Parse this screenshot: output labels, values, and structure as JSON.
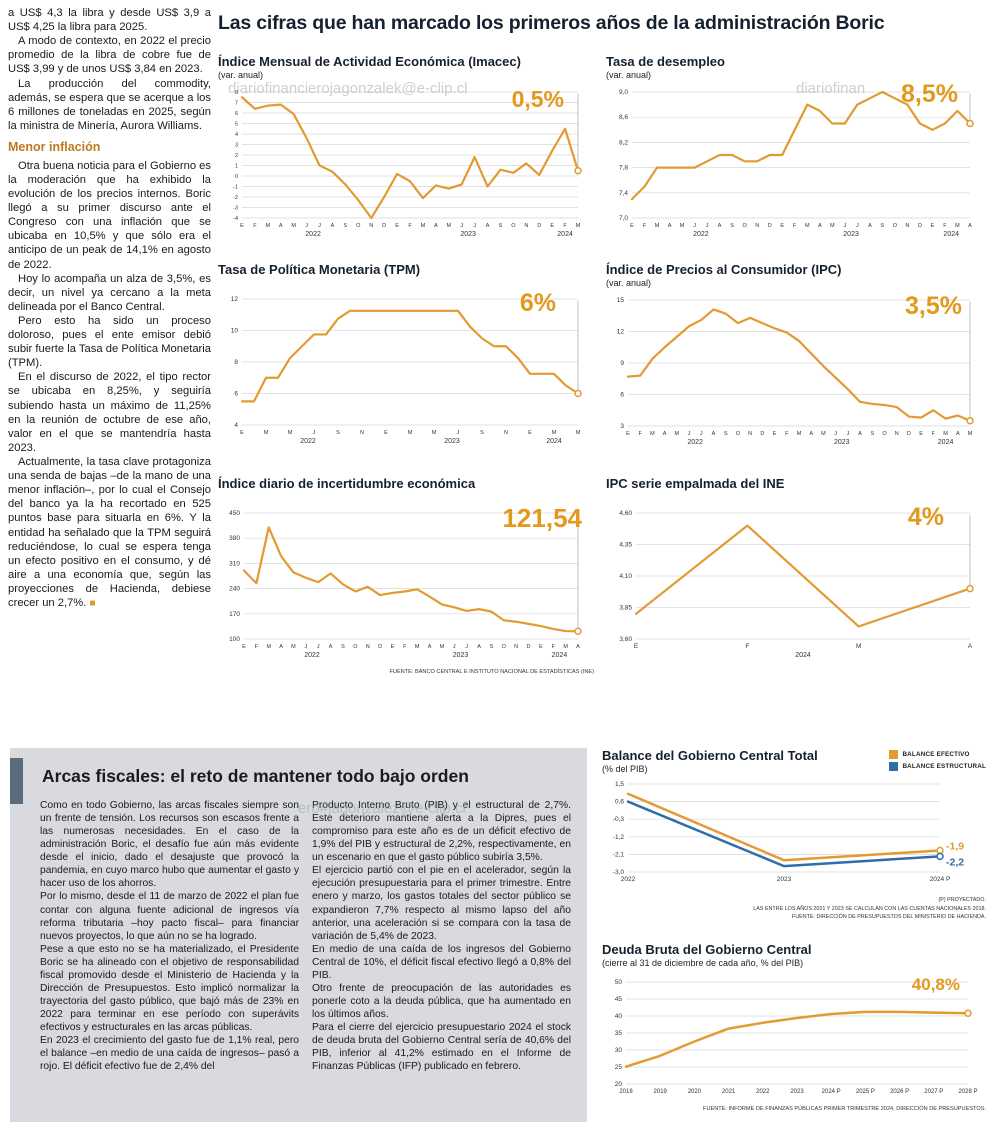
{
  "page": {
    "main_title": "Las cifras que han marcado los primeros años de la administración Boric"
  },
  "watermarks": [
    "diariofinancierojagonzalek@e-clip.cl",
    "diariofinan",
    "ero#jagonzalez@e-clip.cl"
  ],
  "left_article": {
    "intro": [
      "a US$ 4,3 la libra y desde US$ 3,9 a US$ 4,25 la libra para 2025.",
      "A modo de contexto, en 2022 el precio promedio de la libra de cobre fue de US$ 3,99 y de unos US$ 3,84 en 2023.",
      "La producción del commodity, además, se espera que se acerque a los 6 millones de toneladas en 2025, según la ministra de Minería, Aurora Williams."
    ],
    "heading": "Menor inflación",
    "body": [
      "Otra buena noticia para el Gobierno es la moderación que ha exhibido la evolución de los precios internos. Boric llegó a su primer discurso ante el Congreso con una inflación que se ubicaba en 10,5% y que sólo era el anticipo de un peak de 14,1% en agosto de 2022.",
      "Hoy lo acompaña un alza de 3,5%, es decir, un nivel ya cercano a la meta delineada por el Banco Central.",
      "Pero esto ha sido un proceso doloroso, pues el ente emisor debió subir fuerte la Tasa de Política Monetaria (TPM).",
      "En el discurso de 2022, el tipo rector se ubicaba en 8,25%, y seguiría subiendo hasta un máximo de 11,25% en la reunión de octubre de ese año, valor en el que se mantendría hasta 2023.",
      "Actualmente, la tasa clave protagoniza una senda de bajas –de la mano de una menor inflación–, por lo cual el Consejo del banco ya la ha recortado en 525 puntos base para situarla en 6%. Y la entidad ha señalado que la TPM seguirá reduciéndose, lo cual se espera tenga un efecto positivo en el consumo, y dé aire a una economía que, según las proyecciones de Hacienda, debiese crecer un 2,7%."
    ],
    "end_mark": "■"
  },
  "arcas": {
    "title": "Arcas fiscales: el reto de mantener todo bajo orden",
    "col1": [
      "Como en todo Gobierno, las arcas fiscales siempre son un frente de tensión. Los recursos son escasos frente a las numerosas necesidades. En el caso de la administración Boric, el desafío fue aún más evidente desde el inicio, dado el desajuste que provocó la pandemia, en cuyo marco hubo que aumentar el gasto y hacer uso de los ahorros.",
      "Por lo mismo, desde el 11 de marzo de 2022 el plan fue contar con alguna fuente adicional de ingresos vía reforma tributaria –hoy pacto fiscal– para financiar nuevos proyectos, lo que aún no se ha logrado.",
      "Pese a que esto no se ha materializado, el Presidente Boric se ha alineado con el objetivo de responsabilidad fiscal promovido desde el Ministerio de Hacienda y la Dirección de Presupuestos. Esto implicó normalizar la trayectoria del gasto público, que bajó más de 23% en 2022 para terminar en ese período con superávits efectivos y estructurales en las arcas públicas.",
      "En 2023 el crecimiento del gasto fue de 1,1% real, pero el balance –en medio de una caída de ingresos– pasó a rojo. El déficit efectivo fue de 2,4% del"
    ],
    "col2": [
      "Producto Interno Bruto (PIB) y el estructural de 2,7%. Este deterioro mantiene alerta a la Dipres, pues el compromiso para este año es de un déficit efectivo de 1,9% del PIB y estructural de 2,2%, respectivamente, en un escenario en que el gasto público subiría 3,5%.",
      "El ejercicio partió con el pie en el acelerador, según la ejecución presupuestaria para el primer trimestre. Entre enero y marzo, los gastos totales del sector público se expandieron 7,7% respecto al mismo lapso del año anterior, una aceleración si se compara con la tasa de variación de 5,4% de 2023.",
      "En medio de una caída de los ingresos del Gobierno Central de 10%, el déficit fiscal efectivo llegó a 0,8% del PIB.",
      "Otro frente de preocupación de las autoridades es ponerle coto a la deuda pública, que ha aumentado en los últimos años.",
      "Para el cierre del ejercicio presupuestario 2024 el stock de deuda bruta del Gobierno Central sería de 40,6% del PIB, inferior al 41,2% estimado en el Informe de Finanzas Públicas (IFP) publicado en febrero."
    ]
  },
  "chart_data": [
    {
      "id": "imacec",
      "type": "line",
      "title": "Índice Mensual de Actividad Económica (Imacec)",
      "subtitle": "(var. anual)",
      "highlight": "0,5%",
      "ylim": [
        -4,
        8
      ],
      "yfs": 5.5,
      "ml": 24,
      "yticks": [
        8,
        7,
        6,
        5,
        4,
        3,
        2,
        1,
        0,
        -1,
        -2,
        -3,
        -4
      ],
      "categories": [
        "E",
        "F",
        "M",
        "A",
        "M",
        "J",
        "J",
        "A",
        "S",
        "O",
        "N",
        "D",
        "E",
        "F",
        "M",
        "A",
        "M",
        "J",
        "J",
        "A",
        "S",
        "O",
        "N",
        "D",
        "E",
        "F",
        "M"
      ],
      "year_spans": [
        {
          "label": "2022",
          "from": 0,
          "to": 11
        },
        {
          "label": "2023",
          "from": 12,
          "to": 23
        },
        {
          "label": "2024",
          "from": 24,
          "to": 26
        }
      ],
      "pointer": true,
      "series": [
        {
          "name": "Imacec",
          "color": "#E39A33",
          "end_dot": true,
          "values": [
            7.5,
            6.4,
            6.7,
            6.8,
            5.9,
            3.6,
            1.0,
            0.4,
            -0.8,
            -2.3,
            -4.0,
            -2.0,
            0.2,
            -0.5,
            -2.1,
            -0.9,
            -1.2,
            -0.8,
            1.8,
            -1.0,
            0.6,
            0.3,
            1.2,
            0.1,
            2.4,
            4.5,
            0.5
          ]
        }
      ]
    },
    {
      "id": "desempleo",
      "type": "line",
      "title": "Tasa de desempleo",
      "subtitle": "(var. anual)",
      "highlight": "8,5%",
      "ylim": [
        7.0,
        9.0
      ],
      "ml": 26,
      "yticks": [
        9.0,
        8.6,
        8.2,
        7.8,
        7.4,
        7.0
      ],
      "ytick_labels": [
        "9,0",
        "8,6",
        "8,2",
        "7,8",
        "7,4",
        "7,0"
      ],
      "categories": [
        "E",
        "F",
        "M",
        "A",
        "M",
        "J",
        "J",
        "A",
        "S",
        "O",
        "N",
        "D",
        "E",
        "F",
        "M",
        "A",
        "M",
        "J",
        "J",
        "A",
        "S",
        "O",
        "N",
        "D",
        "E",
        "F",
        "M",
        "A"
      ],
      "year_spans": [
        {
          "label": "2022",
          "from": 0,
          "to": 11
        },
        {
          "label": "2023",
          "from": 12,
          "to": 23
        },
        {
          "label": "2024",
          "from": 24,
          "to": 27
        }
      ],
      "pointer": true,
      "series": [
        {
          "name": "Desempleo",
          "color": "#E39A33",
          "end_dot": true,
          "values": [
            7.3,
            7.5,
            7.8,
            7.8,
            7.8,
            7.8,
            7.9,
            8.0,
            8.0,
            7.9,
            7.9,
            8.0,
            8.0,
            8.4,
            8.8,
            8.7,
            8.5,
            8.5,
            8.8,
            8.9,
            9.0,
            8.9,
            8.8,
            8.5,
            8.4,
            8.5,
            8.7,
            8.5
          ]
        }
      ]
    },
    {
      "id": "tpm",
      "type": "line",
      "title": "Tasa de Política Monetaria (TPM)",
      "highlight": "6%",
      "ylim": [
        4,
        12
      ],
      "ml": 24,
      "xtick_every": 2,
      "yticks": [
        12,
        10,
        8,
        6,
        4
      ],
      "categories": [
        "E",
        "F",
        "M",
        "A",
        "M",
        "J",
        "J",
        "A",
        "S",
        "O",
        "N",
        "D",
        "E",
        "F",
        "M",
        "A",
        "M",
        "J",
        "J",
        "A",
        "S",
        "O",
        "N",
        "D",
        "E",
        "F",
        "M",
        "A",
        "M"
      ],
      "year_spans": [
        {
          "label": "2022",
          "from": 0,
          "to": 11
        },
        {
          "label": "2023",
          "from": 12,
          "to": 23
        },
        {
          "label": "2024",
          "from": 24,
          "to": 28
        }
      ],
      "pointer": true,
      "series": [
        {
          "name": "TPM",
          "color": "#E39A33",
          "end_dot": true,
          "values": [
            5.5,
            5.5,
            7.0,
            7.0,
            8.25,
            9.0,
            9.75,
            9.75,
            10.75,
            11.25,
            11.25,
            11.25,
            11.25,
            11.25,
            11.25,
            11.25,
            11.25,
            11.25,
            11.25,
            10.25,
            9.5,
            9.0,
            9.0,
            8.25,
            7.25,
            7.25,
            7.25,
            6.5,
            6.0
          ]
        }
      ]
    },
    {
      "id": "ipc",
      "type": "line",
      "title": "Índice de Precios al Consumidor (IPC)",
      "subtitle": "(var. anual)",
      "highlight": "3,5%",
      "ylim": [
        3,
        15
      ],
      "ml": 22,
      "yticks": [
        15,
        12,
        9,
        6,
        3
      ],
      "categories": [
        "E",
        "F",
        "M",
        "A",
        "M",
        "J",
        "J",
        "A",
        "S",
        "O",
        "N",
        "D",
        "E",
        "F",
        "M",
        "A",
        "M",
        "J",
        "J",
        "A",
        "S",
        "O",
        "N",
        "D",
        "E",
        "F",
        "M",
        "A",
        "M"
      ],
      "year_spans": [
        {
          "label": "2022",
          "from": 0,
          "to": 11
        },
        {
          "label": "2023",
          "from": 12,
          "to": 23
        },
        {
          "label": "2024",
          "from": 24,
          "to": 28
        }
      ],
      "pointer": true,
      "series": [
        {
          "name": "IPC",
          "color": "#E39A33",
          "end_dot": true,
          "values": [
            7.7,
            7.8,
            9.4,
            10.5,
            11.5,
            12.5,
            13.1,
            14.1,
            13.7,
            12.8,
            13.3,
            12.8,
            12.3,
            11.9,
            11.1,
            9.9,
            8.7,
            7.6,
            6.5,
            5.3,
            5.1,
            5.0,
            4.8,
            3.9,
            3.8,
            4.5,
            3.7,
            4.0,
            3.5
          ]
        }
      ]
    },
    {
      "id": "incertidumbre",
      "type": "line",
      "title": "Índice diario de incertidumbre económica",
      "highlight": "121,54",
      "source": "FUENTE: BANCO CENTRAL E INSTITUTO NACIONAL DE ESTADÍSTICAS (INE)",
      "ylim": [
        100,
        450
      ],
      "ml": 26,
      "yticks": [
        450,
        380,
        310,
        240,
        170,
        100
      ],
      "categories": [
        "E",
        "F",
        "M",
        "A",
        "M",
        "J",
        "J",
        "A",
        "S",
        "O",
        "N",
        "D",
        "E",
        "F",
        "M",
        "A",
        "M",
        "J",
        "J",
        "A",
        "S",
        "O",
        "N",
        "D",
        "E",
        "F",
        "M",
        "A"
      ],
      "year_spans": [
        {
          "label": "2022",
          "from": 0,
          "to": 11
        },
        {
          "label": "2023",
          "from": 12,
          "to": 23
        },
        {
          "label": "2024",
          "from": 24,
          "to": 27
        }
      ],
      "pointer": true,
      "series": [
        {
          "name": "Incertidumbre",
          "color": "#E39A33",
          "end_dot": true,
          "values": [
            290,
            255,
            410,
            330,
            285,
            270,
            258,
            282,
            252,
            232,
            245,
            222,
            228,
            232,
            238,
            218,
            196,
            188,
            178,
            183,
            176,
            152,
            148,
            142,
            136,
            128,
            122,
            121.54
          ]
        }
      ]
    },
    {
      "id": "ipc_empalmada",
      "type": "line",
      "title": "IPC serie empalmada del INE",
      "highlight": "4%",
      "ylim": [
        3.6,
        4.6
      ],
      "ml": 30,
      "xfs": 6.5,
      "yticks": [
        4.6,
        4.35,
        4.1,
        3.85,
        3.6
      ],
      "ytick_labels": [
        "4,60",
        "4,35",
        "4,10",
        "3,85",
        "3,60"
      ],
      "categories": [
        "E",
        "F",
        "M",
        "A"
      ],
      "year_spans": [
        {
          "label": "2024",
          "from": 0,
          "to": 3
        }
      ],
      "pointer": true,
      "series": [
        {
          "name": "IPC empalmada",
          "color": "#E39A33",
          "end_dot": true,
          "values": [
            3.8,
            4.5,
            3.7,
            4.0
          ]
        }
      ]
    },
    {
      "id": "balance",
      "type": "line",
      "title": "Balance del Gobierno Central Total",
      "subtitle": "(% del PIB)",
      "legend": [
        {
          "label": "BALANCE EFECTIVO",
          "color": "#E39A33"
        },
        {
          "label": "BALANCE ESTRUCTURAL",
          "color": "#2E6DA8"
        }
      ],
      "ylim": [
        -3.0,
        1.5
      ],
      "ml": 26,
      "mr": 46,
      "mt": 8,
      "mb": 16,
      "xfs": 6.5,
      "yticks": [
        1.5,
        0.6,
        -0.3,
        -1.2,
        -2.1,
        -3.0
      ],
      "ytick_labels": [
        "1,5",
        "0,6",
        "-0,3",
        "-1,2",
        "-2,1",
        "-3,0"
      ],
      "categories": [
        "2022",
        "2023",
        "2024 P"
      ],
      "notes": [
        "(P) PROYECTADO.",
        "LAS ENTRE LOS AÑOS 2021 Y 2023 SE CALCULAN CON LAS CUENTAS NACIONALES 2018.",
        "FUENTE: DIRECCIÓN DE PRESUPUESTOS DEL MINISTERIO DE HACIENDA."
      ],
      "series": [
        {
          "name": "Balance efectivo",
          "color": "#E39A33",
          "width": 2.5,
          "end_dot": true,
          "end_label": "-1,9",
          "end_label_dy": -1,
          "values": [
            1.0,
            -2.4,
            -1.9
          ]
        },
        {
          "name": "Balance estructural",
          "color": "#2E6DA8",
          "width": 2.5,
          "end_dot": true,
          "end_label": "-2,2",
          "end_label_dy": 9,
          "values": [
            0.6,
            -2.7,
            -2.2
          ]
        }
      ]
    },
    {
      "id": "deuda",
      "type": "line",
      "title": "Deuda Bruta del Gobierno Central",
      "subtitle": "(cierre al 31 de diciembre de cada año, % del PIB)",
      "highlight": "40,8%",
      "source": "FUENTE: INFORME DE FINANZAS PÚBLICAS PRIMER TRIMESTRE 2024, DIRECCIÓN DE PRESUPUESTOS.",
      "ylim": [
        20,
        50
      ],
      "ml": 24,
      "mr": 18,
      "mt": 12,
      "mb": 16,
      "xfs": 6,
      "yticks": [
        50,
        45,
        40,
        35,
        30,
        25,
        20
      ],
      "categories": [
        "2018",
        "2019",
        "2020",
        "2021",
        "2022",
        "2023",
        "2024 P",
        "2025 P",
        "2026 P",
        "2027 P",
        "2028 P"
      ],
      "series": [
        {
          "name": "Deuda bruta",
          "color": "#E39A33",
          "width": 2.5,
          "end_dot": true,
          "values": [
            25.1,
            28.3,
            32.5,
            36.3,
            38.0,
            39.4,
            40.6,
            41.2,
            41.2,
            41.0,
            40.8
          ]
        }
      ]
    }
  ],
  "colors": {
    "accent_orange": "#E2991C",
    "line_orange": "#E39A33",
    "line_blue": "#2E6DA8",
    "heading_orange": "#BF7A1F",
    "panel_gray": "#d8dadf",
    "accent_slate": "#5b6b7c"
  }
}
